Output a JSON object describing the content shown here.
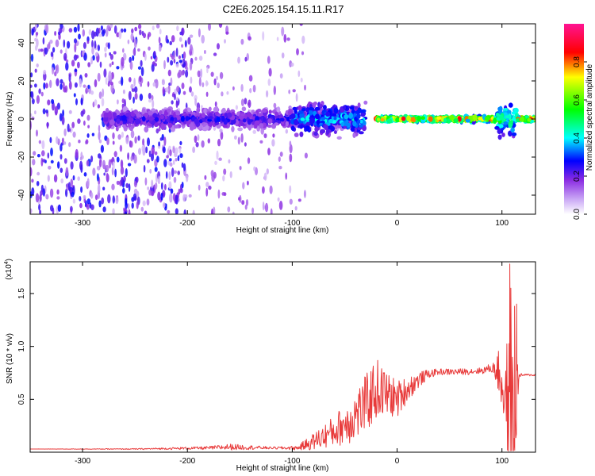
{
  "title": "C2E6.2025.154.15.11.R17",
  "chart_data": [
    {
      "type": "heatmap",
      "xlabel": "Height of straight line (km)",
      "ylabel": "Frequency (Hz)",
      "xlim": [
        -350,
        132
      ],
      "ylim": [
        -50,
        50
      ],
      "xticks": [
        -300,
        -200,
        -100,
        0,
        100
      ],
      "yticks": [
        -40,
        -20,
        0,
        20,
        40
      ],
      "colorbar": {
        "label": "Normalized spectral amplitude",
        "range": [
          0,
          1
        ],
        "ticks": [
          0.0,
          0.2,
          0.4,
          0.6,
          0.8
        ],
        "colormap": [
          "#ffffff",
          "#8a2be2",
          "#0000ff",
          "#00ffff",
          "#00ff00",
          "#ffff00",
          "#ff0000",
          "#ff1493"
        ]
      },
      "segments": [
        {
          "x_from": -350,
          "x_to": -200,
          "noise_density": 0.85,
          "freq_spread": 50
        },
        {
          "x_from": -200,
          "x_to": -140,
          "noise_density": 0.35,
          "freq_spread": 50
        },
        {
          "x_from": -140,
          "x_to": -85,
          "noise_density": 0.25,
          "freq_spread": 50
        },
        {
          "x_from": -280,
          "x_to": -40,
          "signal_level": 0.3,
          "freq_spread": 6
        },
        {
          "x_from": -100,
          "x_to": -30,
          "signal_level": 0.45,
          "freq_spread": 10
        },
        {
          "x_from": -20,
          "x_to": 95,
          "signal_level": 0.95,
          "freq_spread": 1.5
        },
        {
          "x_from": 95,
          "x_to": 115,
          "signal_level": 0.6,
          "freq_spread": 10
        },
        {
          "x_from": 115,
          "x_to": 132,
          "signal_level": 0.95,
          "freq_spread": 1.5
        }
      ]
    },
    {
      "type": "line",
      "xlabel": "Height of straight line (km)",
      "ylabel": "SNR (10 * v/v)",
      "yscale_label": "(x10",
      "yscale_exp": "4",
      "xlim": [
        -350,
        132
      ],
      "ylim": [
        0,
        1.8
      ],
      "xticks": [
        -300,
        -200,
        -100,
        0,
        100
      ],
      "yticks": [
        0.5,
        1.0,
        1.5
      ],
      "ytick_labels": [
        "0.5",
        "1.0",
        "1.5"
      ],
      "line_color": "#e83a3a",
      "series": [
        {
          "x": [
            -350,
            -250,
            -180,
            -160,
            -120,
            -95,
            -80,
            -60,
            -45,
            -30,
            -20,
            -10,
            0,
            10,
            20,
            30,
            40,
            60,
            80,
            92,
            98,
            103,
            106,
            108,
            110,
            112,
            114,
            116,
            120,
            132
          ],
          "y": [
            0.03,
            0.03,
            0.04,
            0.05,
            0.04,
            0.04,
            0.1,
            0.2,
            0.3,
            0.45,
            0.6,
            0.55,
            0.5,
            0.6,
            0.68,
            0.74,
            0.76,
            0.76,
            0.77,
            0.8,
            0.74,
            0.55,
            0.4,
            0.3,
            0.3,
            0.3,
            0.55,
            0.72,
            0.73,
            0.73
          ],
          "noise": [
            0.0,
            0.005,
            0.015,
            0.03,
            0.01,
            0.02,
            0.08,
            0.15,
            0.22,
            0.28,
            0.3,
            0.22,
            0.18,
            0.12,
            0.08,
            0.04,
            0.03,
            0.03,
            0.03,
            0.05,
            0.25,
            0.5,
            0.7,
            0.75,
            0.7,
            0.6,
            0.4,
            0.03,
            0.01,
            0.01
          ]
        }
      ],
      "spikes": [
        {
          "x": 107.5,
          "y": 1.78
        },
        {
          "x": 108.5,
          "y": 1.55
        },
        {
          "x": 112.0,
          "y": 1.38
        },
        {
          "x": 114.0,
          "y": 1.4
        },
        {
          "x": 109.5,
          "y": 0.05
        }
      ]
    }
  ]
}
